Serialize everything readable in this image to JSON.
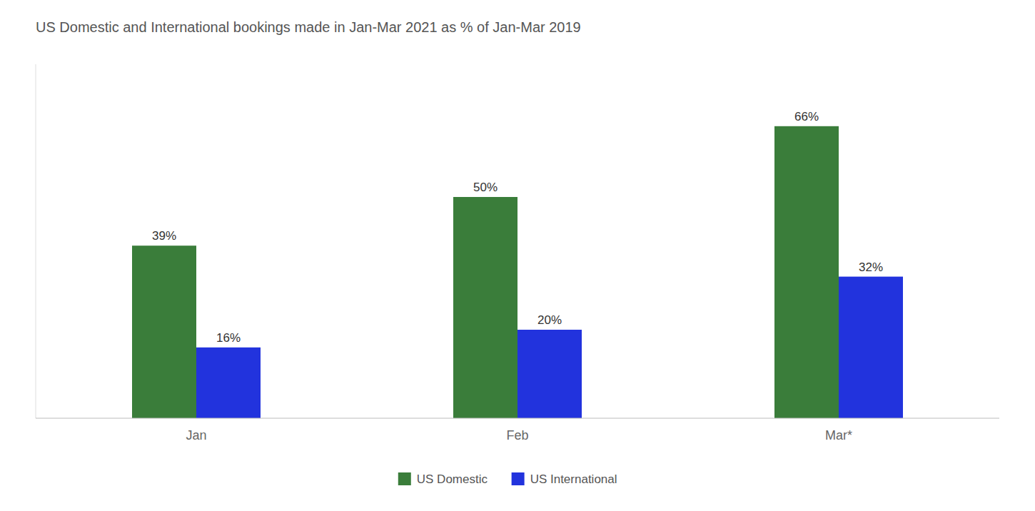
{
  "chart_data": {
    "type": "bar",
    "title": "US Domestic and International bookings made in Jan-Mar 2021 as % of Jan-Mar 2019",
    "categories": [
      "Jan",
      "Feb",
      "Mar*"
    ],
    "series": [
      {
        "name": "US Domestic",
        "color": "#3a7d3a",
        "values": [
          39,
          50,
          66
        ],
        "value_labels": [
          "39%",
          "50%",
          "66%"
        ]
      },
      {
        "name": "US International",
        "color": "#2233dd",
        "values": [
          16,
          20,
          32
        ],
        "value_labels": [
          "16%",
          "20%",
          "32%"
        ]
      }
    ],
    "ylim": [
      0,
      80
    ],
    "grid": false,
    "legend": "bottom",
    "data_labels": true,
    "tick_labels": "x"
  }
}
